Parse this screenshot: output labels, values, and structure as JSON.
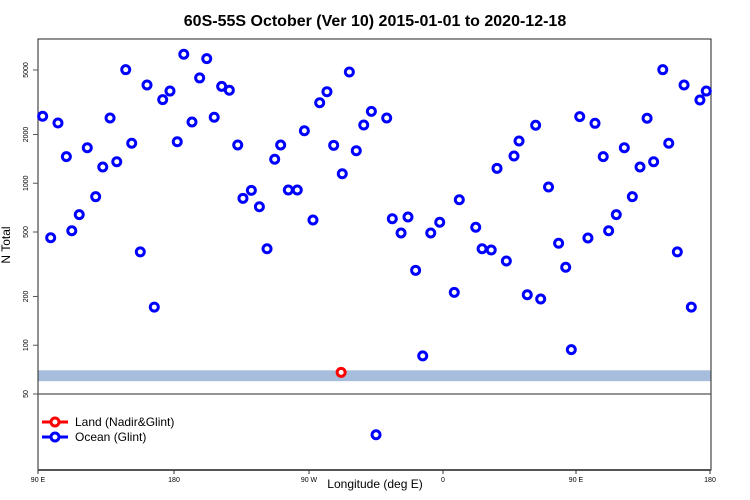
{
  "chart_data": {
    "type": "scatter",
    "title": "60S-55S October (Ver 10)   2015-01-01 to 2020-12-18",
    "xlabel": "Longitude (deg E)",
    "ylabel": "N Total",
    "y_scale": "log",
    "xlim_deg_unwrapped": [
      90,
      450
    ],
    "ylim": [
      16.5,
      7800
    ],
    "x_ticks": [
      {
        "value": 90,
        "label": "90 E"
      },
      {
        "value": 180,
        "label": "180"
      },
      {
        "value": 270,
        "label": "90 W"
      },
      {
        "value": 360,
        "label": "0"
      },
      {
        "value": 450,
        "label": "90 E"
      },
      {
        "value": 540,
        "label": "180"
      }
    ],
    "y_ticks": [
      {
        "value": 50,
        "label": "50"
      },
      {
        "value": 100,
        "label": "100"
      },
      {
        "value": 200,
        "label": "200"
      },
      {
        "value": 500,
        "label": "500"
      },
      {
        "value": 1000,
        "label": "1000"
      },
      {
        "value": 2000,
        "label": "2000"
      },
      {
        "value": 5000,
        "label": "5000"
      }
    ],
    "separator_value": 50,
    "reference_band": {
      "low": 60,
      "high": 70,
      "color": "#a6bddb"
    },
    "legend": {
      "placement": "bottom-left",
      "entries": [
        {
          "label": "Land (Nadir&Glint)",
          "color": "#ff0000"
        },
        {
          "label": "Ocean (Glint)",
          "color": "#0000ff"
        }
      ]
    },
    "series": [
      {
        "name": "Land (Nadir&Glint)",
        "color": "#ff0000",
        "points": [
          [
            -107.6,
            68
          ]
        ]
      },
      {
        "name": "Ocean (Glint)",
        "color": "#0000ff",
        "points": [
          [
            92.5,
            2590
          ],
          [
            96.8,
            461
          ],
          [
            100.7,
            2355
          ],
          [
            105.2,
            1459
          ],
          [
            108.1,
            509
          ],
          [
            112.1,
            640
          ],
          [
            116.4,
            1656
          ],
          [
            120.9,
            826
          ],
          [
            124.7,
            1259
          ],
          [
            128.6,
            2529
          ],
          [
            132.2,
            1358
          ],
          [
            137.0,
            5023
          ],
          [
            140.2,
            1765
          ],
          [
            144.8,
            377
          ],
          [
            148.4,
            4038
          ],
          [
            152.3,
            172
          ],
          [
            156.8,
            3281
          ],
          [
            160.7,
            3707
          ],
          [
            164.6,
            1803
          ],
          [
            168.1,
            6252
          ],
          [
            172.5,
            2388
          ],
          [
            176.6,
            4467
          ],
          [
            -179.6,
            5875
          ],
          [
            -175.6,
            2553
          ],
          [
            -171.6,
            3963
          ],
          [
            -167.5,
            3750
          ],
          [
            -163.0,
            1722
          ],
          [
            -160.2,
            807
          ],
          [
            -155.7,
            904
          ],
          [
            -151.4,
            716
          ],
          [
            -147.3,
            394
          ],
          [
            -143.2,
            1406
          ],
          [
            -140.0,
            1722
          ],
          [
            -135.9,
            908
          ],
          [
            -131.1,
            908
          ],
          [
            -127.3,
            2109
          ],
          [
            -122.7,
            593
          ],
          [
            -119.1,
            3141
          ],
          [
            -115.2,
            3673
          ],
          [
            -111.6,
            1714
          ],
          [
            -107.0,
            1145
          ],
          [
            -103.2,
            4861
          ],
          [
            -99.5,
            1588
          ],
          [
            -95.5,
            2287
          ],
          [
            -91.4,
            2778
          ],
          [
            -88.9,
            28
          ],
          [
            -83.2,
            2529
          ],
          [
            -80.2,
            604
          ],
          [
            -75.5,
            493
          ],
          [
            -71.8,
            619
          ],
          [
            -67.7,
            290
          ],
          [
            -63.9,
            86
          ],
          [
            -59.6,
            493
          ],
          [
            -54.8,
            574
          ],
          [
            -47.0,
            212
          ],
          [
            -44.3,
            791
          ],
          [
            -35.5,
            535
          ],
          [
            -32.1,
            394
          ],
          [
            -27.2,
            387
          ],
          [
            -24.1,
            1236
          ],
          [
            -19.1,
            331
          ],
          [
            -15.0,
            1472
          ],
          [
            -12.3,
            1822
          ],
          [
            -7.9,
            205
          ],
          [
            -3.4,
            2280
          ],
          [
            -0.7,
            193
          ],
          [
            3.5,
            948
          ],
          [
            8.9,
            426
          ],
          [
            12.7,
            303
          ],
          [
            15.7,
            94
          ],
          [
            20.2,
            2576
          ],
          [
            24.6,
            459
          ],
          [
            28.4,
            2344
          ],
          [
            32.8,
            1459
          ],
          [
            35.7,
            509
          ],
          [
            39.8,
            640
          ],
          [
            44.1,
            1656
          ],
          [
            48.4,
            826
          ],
          [
            52.5,
            1259
          ],
          [
            56.3,
            2518
          ],
          [
            59.8,
            1358
          ],
          [
            64.7,
            5023
          ],
          [
            67.9,
            1765
          ],
          [
            72.5,
            377
          ],
          [
            76.1,
            4038
          ],
          [
            80.0,
            172
          ],
          [
            84.6,
            3266
          ],
          [
            88.0,
            3707
          ]
        ]
      }
    ]
  }
}
